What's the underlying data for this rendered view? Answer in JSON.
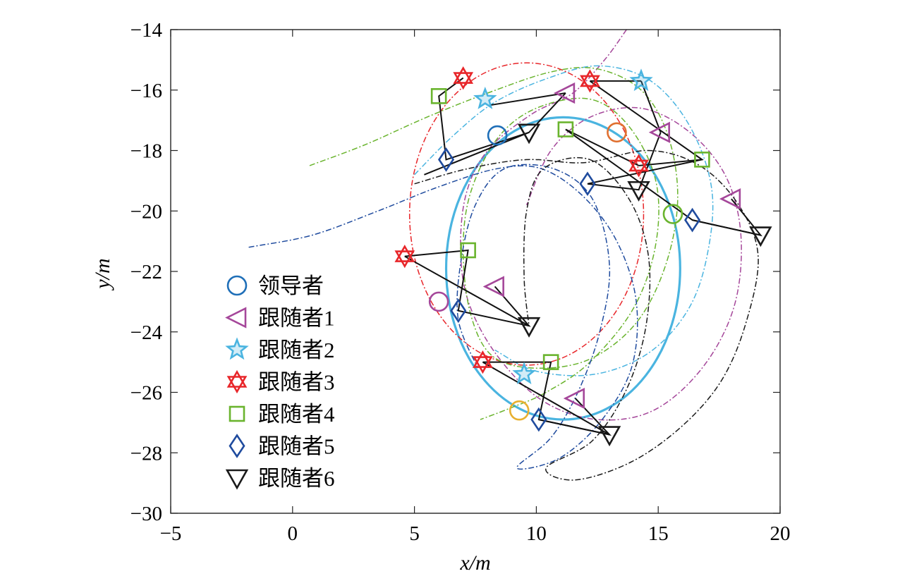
{
  "chart_data": {
    "type": "scatter",
    "xlabel": "x/m",
    "ylabel": "y/m",
    "xlim": [
      -5,
      20
    ],
    "ylim": [
      -30,
      -14
    ],
    "xticks": [
      -5,
      0,
      5,
      10,
      15,
      20
    ],
    "yticks": [
      -30,
      -28,
      -26,
      -24,
      -22,
      -20,
      -18,
      -16,
      -14
    ],
    "xticklabels": [
      "−5",
      "0",
      "5",
      "10",
      "15",
      "20"
    ],
    "yticklabels": [
      "−30",
      "−28",
      "−26",
      "−24",
      "−22",
      "−20",
      "−18",
      "−16",
      "−14"
    ],
    "grid": false,
    "legend_position": "bottom-left",
    "series": [
      {
        "name": "领导者",
        "marker": "circle",
        "color": "#1f6fb8",
        "path_color": "#4ab4e0",
        "ellipse": {
          "cx": 11.1,
          "cy": -21.9,
          "rx": 4.8,
          "ry": 5.0
        }
      },
      {
        "name": "跟随者1",
        "marker": "triangle-left",
        "color": "#a5479a",
        "path_color": "#a5479a",
        "path": [
          [
            13.7,
            -14.0
          ],
          [
            12.8,
            -15.0
          ],
          [
            11.5,
            -16.1
          ],
          [
            9.8,
            -16.8
          ],
          [
            8.0,
            -18.0
          ],
          [
            7.1,
            -19.5
          ],
          [
            6.9,
            -21.5
          ],
          [
            7.3,
            -23.2
          ],
          [
            8.5,
            -24.9
          ],
          [
            10.3,
            -26.3
          ],
          [
            12.5,
            -26.9
          ],
          [
            14.8,
            -26.6
          ],
          [
            16.8,
            -25.2
          ],
          [
            18.1,
            -23.2
          ],
          [
            18.4,
            -20.9
          ],
          [
            17.8,
            -18.9
          ],
          [
            16.3,
            -17.4
          ],
          [
            14.3,
            -16.6
          ],
          [
            12.2,
            -16.9
          ],
          [
            10.6,
            -18.0
          ],
          [
            9.6,
            -19.8
          ]
        ]
      },
      {
        "name": "跟随者2",
        "marker": "star5",
        "color": "#4ab4e0",
        "path_color": "#4ab4e0",
        "path": [
          [
            5.0,
            -18.8
          ],
          [
            6.6,
            -17.5
          ],
          [
            8.3,
            -16.4
          ],
          [
            10.5,
            -15.6
          ],
          [
            12.6,
            -15.2
          ],
          [
            14.7,
            -15.7
          ],
          [
            16.3,
            -17.2
          ],
          [
            17.2,
            -19.3
          ],
          [
            17.0,
            -21.5
          ],
          [
            16.2,
            -23.3
          ],
          [
            14.6,
            -24.7
          ],
          [
            12.4,
            -25.4
          ],
          [
            10.0,
            -25.3
          ],
          [
            8.3,
            -24.6
          ]
        ]
      },
      {
        "name": "跟随者3",
        "marker": "star6",
        "color": "#e8262a",
        "path_color": "#e8262a",
        "ellipse": {
          "cx": 9.6,
          "cy": -20.1,
          "rx": 4.8,
          "ry": 5.0
        }
      },
      {
        "name": "跟随者4",
        "marker": "square",
        "color": "#6ab42e",
        "path_color": "#6ab42e",
        "path": [
          [
            0.7,
            -18.5
          ],
          [
            3.0,
            -17.8
          ],
          [
            5.5,
            -16.9
          ],
          [
            8.0,
            -16.1
          ],
          [
            10.6,
            -15.4
          ],
          [
            12.5,
            -15.3
          ],
          [
            14.3,
            -16.0
          ],
          [
            15.4,
            -17.5
          ],
          [
            15.8,
            -19.6
          ],
          [
            15.3,
            -21.8
          ],
          [
            14.1,
            -23.7
          ],
          [
            12.2,
            -24.9
          ],
          [
            10.0,
            -25.2
          ],
          [
            8.2,
            -24.8
          ],
          [
            7.3,
            -23.4
          ],
          [
            7.0,
            -21.3
          ],
          [
            7.3,
            -19.4
          ],
          [
            8.4,
            -17.6
          ],
          [
            10.0,
            -16.6
          ],
          [
            12.2,
            -16.3
          ],
          [
            13.8,
            -17.2
          ],
          [
            14.9,
            -19.0
          ],
          [
            14.9,
            -21.1
          ],
          [
            14.0,
            -23.2
          ],
          [
            12.2,
            -25.0
          ],
          [
            10.4,
            -26.0
          ],
          [
            9.0,
            -26.5
          ],
          [
            7.7,
            -26.9
          ]
        ]
      },
      {
        "name": "跟随者5",
        "marker": "diamond",
        "color": "#1f4b9e",
        "path_color": "#1f4b9e",
        "path": [
          [
            -1.8,
            -21.2
          ],
          [
            0.8,
            -20.8
          ],
          [
            3.5,
            -20.0
          ],
          [
            6.0,
            -19.2
          ],
          [
            8.4,
            -18.6
          ],
          [
            10.2,
            -18.6
          ],
          [
            11.9,
            -19.5
          ],
          [
            13.3,
            -21.0
          ],
          [
            14.1,
            -23.0
          ],
          [
            13.9,
            -25.2
          ],
          [
            12.6,
            -27.0
          ],
          [
            10.9,
            -28.2
          ],
          [
            9.2,
            -28.5
          ],
          [
            10.6,
            -27.5
          ],
          [
            11.7,
            -26.0
          ],
          [
            12.6,
            -24.0
          ],
          [
            13.0,
            -21.8
          ],
          [
            12.3,
            -19.6
          ],
          [
            10.7,
            -18.6
          ],
          [
            8.7,
            -18.6
          ],
          [
            7.5,
            -19.8
          ],
          [
            6.9,
            -21.7
          ],
          [
            6.8,
            -23.6
          ],
          [
            7.6,
            -25.2
          ]
        ]
      },
      {
        "name": "跟随者6",
        "marker": "triangle-down",
        "color": "#1a1a1a",
        "path_color": "#1a1a1a",
        "path": [
          [
            5.0,
            -19.1
          ],
          [
            7.2,
            -18.6
          ],
          [
            9.6,
            -18.3
          ],
          [
            12.0,
            -18.4
          ],
          [
            14.6,
            -18.0
          ],
          [
            16.7,
            -18.5
          ],
          [
            18.3,
            -19.8
          ],
          [
            19.1,
            -21.5
          ],
          [
            18.6,
            -23.7
          ],
          [
            17.6,
            -25.6
          ],
          [
            16.0,
            -27.1
          ],
          [
            13.9,
            -28.3
          ],
          [
            11.6,
            -28.9
          ],
          [
            10.4,
            -28.5
          ],
          [
            12.3,
            -27.6
          ],
          [
            13.7,
            -25.9
          ],
          [
            14.5,
            -23.8
          ],
          [
            14.6,
            -21.5
          ],
          [
            13.8,
            -19.6
          ],
          [
            12.2,
            -18.3
          ],
          [
            10.3,
            -18.6
          ],
          [
            9.6,
            -20.0
          ],
          [
            9.5,
            -22.2
          ],
          [
            9.7,
            -23.8
          ]
        ]
      }
    ],
    "snapshots": [
      {
        "circle": [
          8.4,
          -17.5
        ],
        "triangle-left": [
          11.2,
          -16.1
        ],
        "star5": [
          7.9,
          -16.3
        ],
        "star6": [
          7.0,
          -15.6
        ],
        "square": [
          6.0,
          -16.2
        ],
        "diamond": [
          6.3,
          -18.3
        ],
        "triangle-down": [
          9.7,
          -17.4
        ]
      },
      {
        "circle": [
          13.3,
          -17.4
        ],
        "triangle-left": [
          15.1,
          -17.4
        ],
        "star5": [
          14.3,
          -15.7
        ],
        "star6": [
          12.2,
          -15.7
        ],
        "square": [
          16.8,
          -18.3
        ],
        "diamond": [
          12.1,
          -19.1
        ],
        "triangle-down": [
          14.2,
          -19.3
        ]
      },
      {
        "circle": [
          15.6,
          -20.1
        ],
        "triangle-left": [
          18.0,
          -19.6
        ],
        "star5": null,
        "star6": [
          14.2,
          -18.5
        ],
        "square": [
          11.2,
          -17.3
        ],
        "diamond": [
          16.4,
          -20.3
        ],
        "triangle-down": [
          19.2,
          -20.8
        ]
      },
      {
        "circle": [
          6.0,
          -23.0
        ],
        "triangle-left": [
          8.3,
          -22.5
        ],
        "star5": null,
        "star6": [
          4.6,
          -21.5
        ],
        "square": [
          7.2,
          -21.3
        ],
        "diamond": [
          6.8,
          -23.3
        ],
        "triangle-down": [
          9.7,
          -23.8
        ]
      },
      {
        "circle": [
          9.3,
          -26.6
        ],
        "triangle-left": [
          11.6,
          -26.2
        ],
        "star5": [
          9.5,
          -25.4
        ],
        "star6": [
          7.8,
          -25.0
        ],
        "square": [
          10.6,
          -25.0
        ],
        "diamond": [
          10.1,
          -26.9
        ],
        "triangle-down": [
          13.0,
          -27.4
        ]
      }
    ],
    "snapshot_marker_overrides": [
      {
        "snapshot": 1,
        "marker": "circle",
        "color": "#e07030"
      },
      {
        "snapshot": 2,
        "marker": "circle",
        "color": "#6ab42e"
      },
      {
        "snapshot": 3,
        "marker": "circle",
        "color": "#a5479a"
      },
      {
        "snapshot": 4,
        "marker": "circle",
        "color": "#e8b030"
      }
    ],
    "extra_links": [
      [
        [
          12.2,
          -15.7
        ],
        [
          14.3,
          -15.7
        ]
      ],
      [
        [
          11.2,
          -16.1
        ],
        [
          8.1,
          -16.5
        ]
      ],
      [
        [
          9.7,
          -17.4
        ],
        [
          5.4,
          -18.8
        ]
      ],
      [
        [
          14.3,
          -15.7
        ],
        [
          15.1,
          -17.4
        ]
      ],
      [
        [
          14.2,
          -18.5
        ],
        [
          16.8,
          -18.3
        ]
      ],
      [
        [
          16.4,
          -20.3
        ],
        [
          19.2,
          -20.8
        ]
      ],
      [
        [
          4.6,
          -21.5
        ],
        [
          9.7,
          -23.8
        ]
      ],
      [
        [
          7.8,
          -25.0
        ],
        [
          13.0,
          -27.4
        ]
      ],
      [
        [
          10.1,
          -26.9
        ],
        [
          13.0,
          -27.4
        ]
      ]
    ]
  }
}
